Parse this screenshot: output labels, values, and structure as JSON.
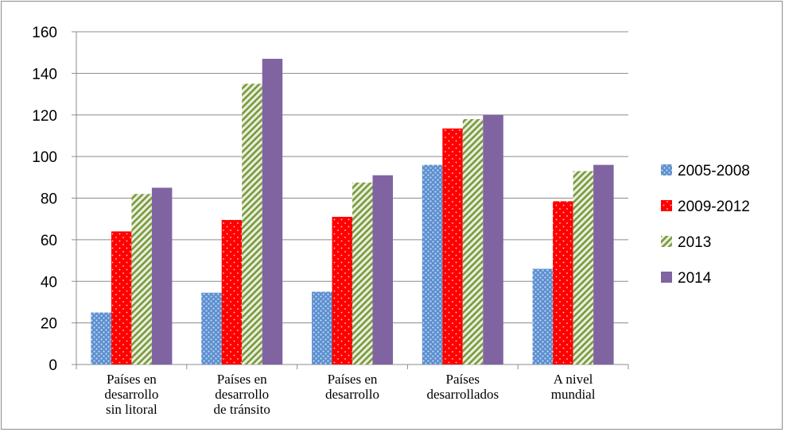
{
  "chart_data": {
    "type": "bar",
    "categories": [
      [
        "Países en",
        "desarrollo",
        "sin litoral"
      ],
      [
        "Países en",
        "desarrollo",
        "de tránsito"
      ],
      [
        "Países en",
        "desarrollo"
      ],
      [
        "Países",
        "desarrollados"
      ],
      [
        "A nivel",
        "mundial"
      ]
    ],
    "series": [
      {
        "name": "2005-2008",
        "values": [
          25,
          34.5,
          35,
          96,
          46
        ],
        "color": "#5b8fd0",
        "pattern": "dots-blue"
      },
      {
        "name": "2009-2012",
        "values": [
          64,
          69.5,
          71,
          113.5,
          78.5
        ],
        "color": "#ff0000",
        "pattern": "dots-red"
      },
      {
        "name": "2013",
        "values": [
          82,
          135,
          87.5,
          118,
          93
        ],
        "color": "#7a9a3f",
        "pattern": "stripes-green"
      },
      {
        "name": "2014",
        "values": [
          85,
          147,
          91,
          120,
          96
        ],
        "color": "#8064a2",
        "pattern": "solid"
      }
    ],
    "ylim": [
      0,
      160
    ],
    "yticks": [
      0,
      20,
      40,
      60,
      80,
      100,
      120,
      140,
      160
    ],
    "grid": true,
    "legend_position": "right"
  }
}
